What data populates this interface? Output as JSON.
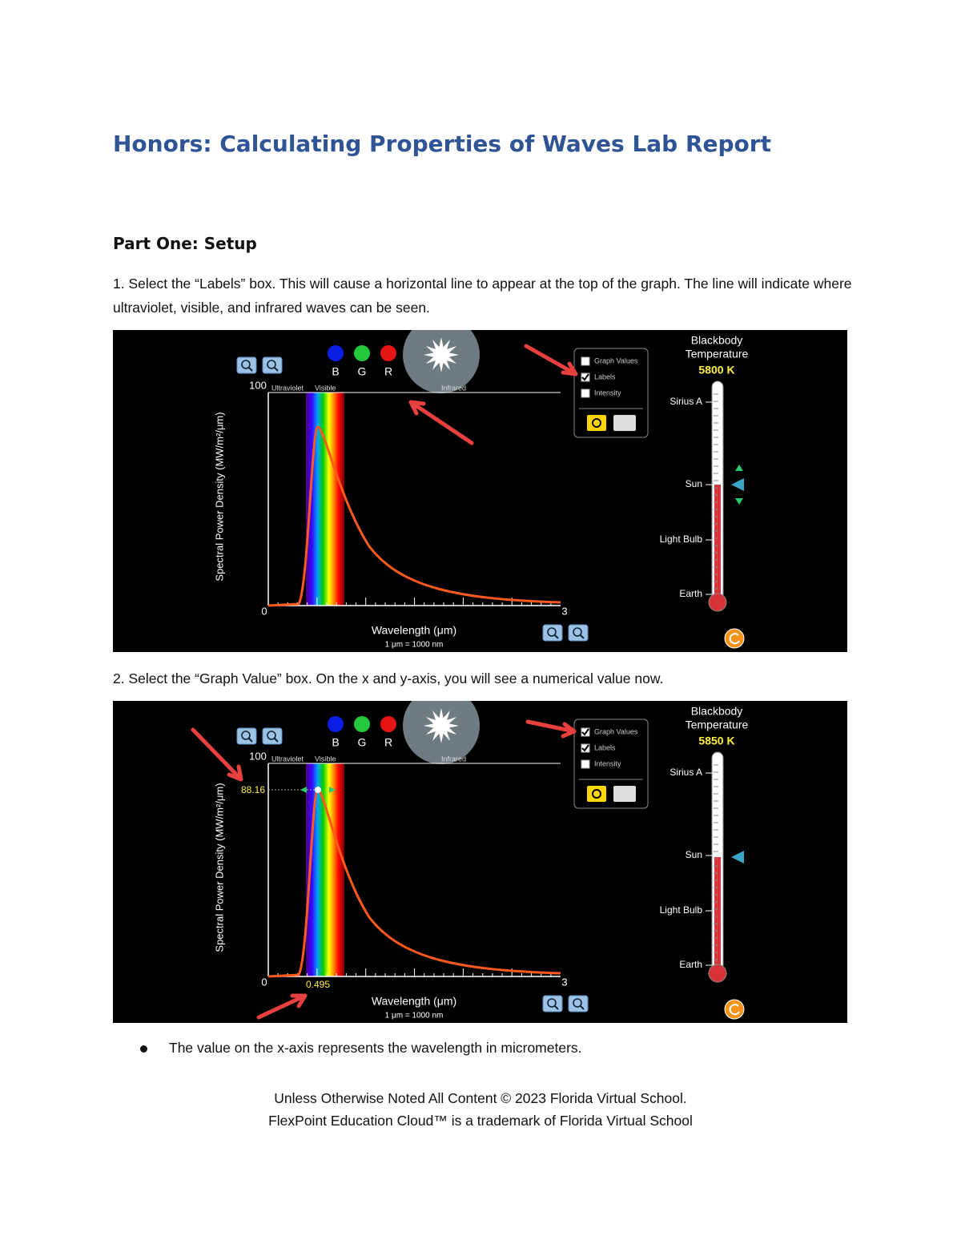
{
  "header": {
    "title": "Honors: Calculating Properties of Waves Lab Report"
  },
  "section": {
    "heading": "Part One: Setup"
  },
  "steps": [
    "1. Select the “Labels” box. This will cause a horizontal line to appear at the top of the graph. The line will indicate where ultraviolet, visible, and infrared waves can be seen.",
    "2. Select the “Graph Value” box. On the x and y-axis, you will see a numerical value now."
  ],
  "screenshots": [
    {
      "colors": [
        "B",
        "G",
        "R"
      ],
      "y_max": "100",
      "x_min": "0",
      "x_max": "3",
      "bands": [
        "Ultraviolet",
        "Visible",
        "Infrared"
      ],
      "y_label": "Spectral Power Density (MW/m²/μm)",
      "x_label": "Wavelength (μm)",
      "x_note": "1 μm = 1000 nm",
      "checkboxes": [
        {
          "label": "Graph Values",
          "checked": false
        },
        {
          "label": "Labels",
          "checked": true
        },
        {
          "label": "Intensity",
          "checked": false
        }
      ],
      "thermo_title": [
        "Blackbody",
        "Temperature"
      ],
      "temperature": "5800 K",
      "thermo_labels": [
        "Sirius A",
        "Sun",
        "Light Bulb",
        "Earth"
      ]
    },
    {
      "colors": [
        "B",
        "G",
        "R"
      ],
      "y_max": "100",
      "x_min": "0",
      "x_max": "3",
      "bands": [
        "Ultraviolet",
        "Visible",
        "Infrared"
      ],
      "y_label": "Spectral Power Density (MW/m²/μm)",
      "x_label": "Wavelength (μm)",
      "x_note": "1 μm = 1000 nm",
      "checkboxes": [
        {
          "label": "Graph Values",
          "checked": true
        },
        {
          "label": "Labels",
          "checked": true
        },
        {
          "label": "Intensity",
          "checked": false
        }
      ],
      "thermo_title": [
        "Blackbody",
        "Temperature"
      ],
      "temperature": "5850 K",
      "thermo_labels": [
        "Sirius A",
        "Sun",
        "Light Bulb",
        "Earth"
      ],
      "graph_value": {
        "y": "88.16",
        "x": "0.495"
      }
    }
  ],
  "bullets": [
    "The value on the x-axis represents the wavelength in micrometers."
  ],
  "footer": {
    "lines": [
      "Unless Otherwise Noted All Content © 2023 Florida Virtual School.",
      "FlexPoint Education Cloud™ is a trademark of Florida Virtual School"
    ]
  }
}
